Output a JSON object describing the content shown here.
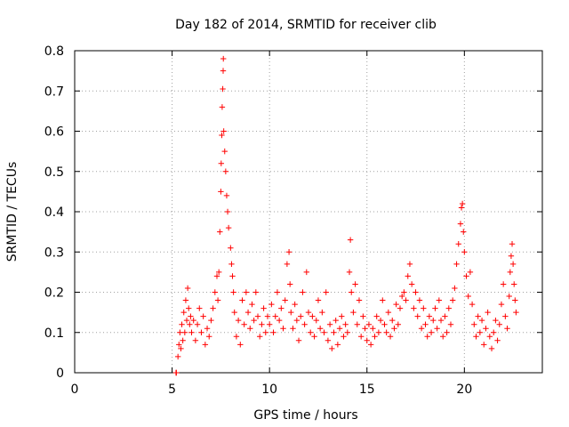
{
  "chart_data": {
    "type": "scatter",
    "title": "Day 182 of 2014, SRMTID for receiver clib",
    "xlabel": "GPS time / hours",
    "ylabel": "SRMTID / TECUs",
    "xlim": [
      0,
      24
    ],
    "ylim": [
      0,
      0.8
    ],
    "xticks": [
      0,
      5,
      10,
      15,
      20
    ],
    "yticks": [
      0,
      0.1,
      0.2,
      0.3,
      0.4,
      0.5,
      0.6,
      0.7,
      0.8
    ],
    "grid": true,
    "marker": "+",
    "color": "#ff0000",
    "series": [
      {
        "name": "SRMTID",
        "points": [
          [
            5.2,
            0.0
          ],
          [
            5.22,
            0.0
          ],
          [
            5.3,
            0.04
          ],
          [
            5.35,
            0.07
          ],
          [
            5.4,
            0.1
          ],
          [
            5.45,
            0.06
          ],
          [
            5.5,
            0.12
          ],
          [
            5.55,
            0.08
          ],
          [
            5.6,
            0.15
          ],
          [
            5.65,
            0.1
          ],
          [
            5.7,
            0.18
          ],
          [
            5.75,
            0.13
          ],
          [
            5.8,
            0.21
          ],
          [
            5.85,
            0.16
          ],
          [
            5.9,
            0.12
          ],
          [
            5.95,
            0.14
          ],
          [
            6.0,
            0.1
          ],
          [
            6.1,
            0.13
          ],
          [
            6.2,
            0.08
          ],
          [
            6.3,
            0.12
          ],
          [
            6.4,
            0.16
          ],
          [
            6.5,
            0.1
          ],
          [
            6.6,
            0.14
          ],
          [
            6.7,
            0.07
          ],
          [
            6.8,
            0.11
          ],
          [
            6.9,
            0.09
          ],
          [
            7.0,
            0.13
          ],
          [
            7.1,
            0.16
          ],
          [
            7.2,
            0.2
          ],
          [
            7.3,
            0.24
          ],
          [
            7.35,
            0.18
          ],
          [
            7.4,
            0.25
          ],
          [
            7.45,
            0.35
          ],
          [
            7.5,
            0.45
          ],
          [
            7.52,
            0.52
          ],
          [
            7.55,
            0.59
          ],
          [
            7.57,
            0.66
          ],
          [
            7.6,
            0.705
          ],
          [
            7.62,
            0.75
          ],
          [
            7.63,
            0.78
          ],
          [
            7.65,
            0.6
          ],
          [
            7.7,
            0.55
          ],
          [
            7.75,
            0.5
          ],
          [
            7.8,
            0.44
          ],
          [
            7.85,
            0.4
          ],
          [
            7.9,
            0.36
          ],
          [
            8.0,
            0.31
          ],
          [
            8.05,
            0.27
          ],
          [
            8.1,
            0.24
          ],
          [
            8.15,
            0.2
          ],
          [
            8.2,
            0.15
          ],
          [
            8.3,
            0.09
          ],
          [
            8.4,
            0.13
          ],
          [
            8.5,
            0.07
          ],
          [
            8.6,
            0.18
          ],
          [
            8.7,
            0.12
          ],
          [
            8.8,
            0.2
          ],
          [
            8.9,
            0.15
          ],
          [
            9.0,
            0.11
          ],
          [
            9.1,
            0.17
          ],
          [
            9.2,
            0.13
          ],
          [
            9.3,
            0.2
          ],
          [
            9.4,
            0.14
          ],
          [
            9.5,
            0.09
          ],
          [
            9.6,
            0.12
          ],
          [
            9.7,
            0.16
          ],
          [
            9.8,
            0.1
          ],
          [
            9.9,
            0.14
          ],
          [
            10.0,
            0.12
          ],
          [
            10.1,
            0.17
          ],
          [
            10.2,
            0.1
          ],
          [
            10.3,
            0.14
          ],
          [
            10.4,
            0.2
          ],
          [
            10.5,
            0.13
          ],
          [
            10.6,
            0.16
          ],
          [
            10.7,
            0.11
          ],
          [
            10.8,
            0.18
          ],
          [
            10.9,
            0.27
          ],
          [
            11.0,
            0.3
          ],
          [
            11.05,
            0.22
          ],
          [
            11.1,
            0.15
          ],
          [
            11.2,
            0.11
          ],
          [
            11.3,
            0.17
          ],
          [
            11.4,
            0.13
          ],
          [
            11.5,
            0.08
          ],
          [
            11.6,
            0.14
          ],
          [
            11.7,
            0.2
          ],
          [
            11.8,
            0.12
          ],
          [
            11.9,
            0.25
          ],
          [
            12.0,
            0.15
          ],
          [
            12.1,
            0.1
          ],
          [
            12.2,
            0.14
          ],
          [
            12.3,
            0.09
          ],
          [
            12.4,
            0.13
          ],
          [
            12.5,
            0.18
          ],
          [
            12.6,
            0.11
          ],
          [
            12.7,
            0.15
          ],
          [
            12.8,
            0.1
          ],
          [
            12.9,
            0.2
          ],
          [
            13.0,
            0.08
          ],
          [
            13.1,
            0.12
          ],
          [
            13.2,
            0.06
          ],
          [
            13.3,
            0.1
          ],
          [
            13.4,
            0.13
          ],
          [
            13.5,
            0.07
          ],
          [
            13.6,
            0.11
          ],
          [
            13.7,
            0.14
          ],
          [
            13.8,
            0.09
          ],
          [
            13.9,
            0.12
          ],
          [
            14.0,
            0.1
          ],
          [
            14.1,
            0.25
          ],
          [
            14.15,
            0.33
          ],
          [
            14.2,
            0.2
          ],
          [
            14.3,
            0.15
          ],
          [
            14.4,
            0.22
          ],
          [
            14.5,
            0.12
          ],
          [
            14.6,
            0.18
          ],
          [
            14.7,
            0.09
          ],
          [
            14.8,
            0.14
          ],
          [
            14.9,
            0.11
          ],
          [
            15.0,
            0.08
          ],
          [
            15.1,
            0.12
          ],
          [
            15.2,
            0.07
          ],
          [
            15.3,
            0.11
          ],
          [
            15.4,
            0.09
          ],
          [
            15.5,
            0.14
          ],
          [
            15.6,
            0.1
          ],
          [
            15.7,
            0.13
          ],
          [
            15.8,
            0.18
          ],
          [
            15.9,
            0.12
          ],
          [
            16.0,
            0.1
          ],
          [
            16.1,
            0.15
          ],
          [
            16.2,
            0.09
          ],
          [
            16.3,
            0.13
          ],
          [
            16.4,
            0.11
          ],
          [
            16.5,
            0.17
          ],
          [
            16.6,
            0.12
          ],
          [
            16.7,
            0.16
          ],
          [
            16.8,
            0.19
          ],
          [
            16.9,
            0.2
          ],
          [
            17.0,
            0.18
          ],
          [
            17.1,
            0.24
          ],
          [
            17.2,
            0.27
          ],
          [
            17.3,
            0.22
          ],
          [
            17.4,
            0.16
          ],
          [
            17.5,
            0.2
          ],
          [
            17.6,
            0.14
          ],
          [
            17.7,
            0.18
          ],
          [
            17.8,
            0.11
          ],
          [
            17.9,
            0.16
          ],
          [
            18.0,
            0.12
          ],
          [
            18.1,
            0.09
          ],
          [
            18.2,
            0.14
          ],
          [
            18.3,
            0.1
          ],
          [
            18.4,
            0.13
          ],
          [
            18.5,
            0.16
          ],
          [
            18.6,
            0.11
          ],
          [
            18.7,
            0.18
          ],
          [
            18.8,
            0.13
          ],
          [
            18.9,
            0.09
          ],
          [
            19.0,
            0.14
          ],
          [
            19.1,
            0.1
          ],
          [
            19.2,
            0.16
          ],
          [
            19.3,
            0.12
          ],
          [
            19.4,
            0.18
          ],
          [
            19.5,
            0.21
          ],
          [
            19.6,
            0.27
          ],
          [
            19.7,
            0.32
          ],
          [
            19.8,
            0.37
          ],
          [
            19.85,
            0.41
          ],
          [
            19.9,
            0.42
          ],
          [
            19.95,
            0.35
          ],
          [
            20.0,
            0.3
          ],
          [
            20.1,
            0.24
          ],
          [
            20.2,
            0.19
          ],
          [
            20.3,
            0.25
          ],
          [
            20.4,
            0.17
          ],
          [
            20.5,
            0.12
          ],
          [
            20.6,
            0.09
          ],
          [
            20.7,
            0.14
          ],
          [
            20.8,
            0.1
          ],
          [
            20.9,
            0.13
          ],
          [
            21.0,
            0.07
          ],
          [
            21.1,
            0.11
          ],
          [
            21.2,
            0.15
          ],
          [
            21.3,
            0.09
          ],
          [
            21.4,
            0.06
          ],
          [
            21.5,
            0.1
          ],
          [
            21.6,
            0.13
          ],
          [
            21.7,
            0.08
          ],
          [
            21.8,
            0.12
          ],
          [
            21.9,
            0.17
          ],
          [
            22.0,
            0.22
          ],
          [
            22.1,
            0.14
          ],
          [
            22.2,
            0.11
          ],
          [
            22.3,
            0.19
          ],
          [
            22.35,
            0.25
          ],
          [
            22.4,
            0.29
          ],
          [
            22.45,
            0.32
          ],
          [
            22.5,
            0.27
          ],
          [
            22.55,
            0.22
          ],
          [
            22.6,
            0.18
          ],
          [
            22.65,
            0.15
          ]
        ]
      }
    ]
  }
}
